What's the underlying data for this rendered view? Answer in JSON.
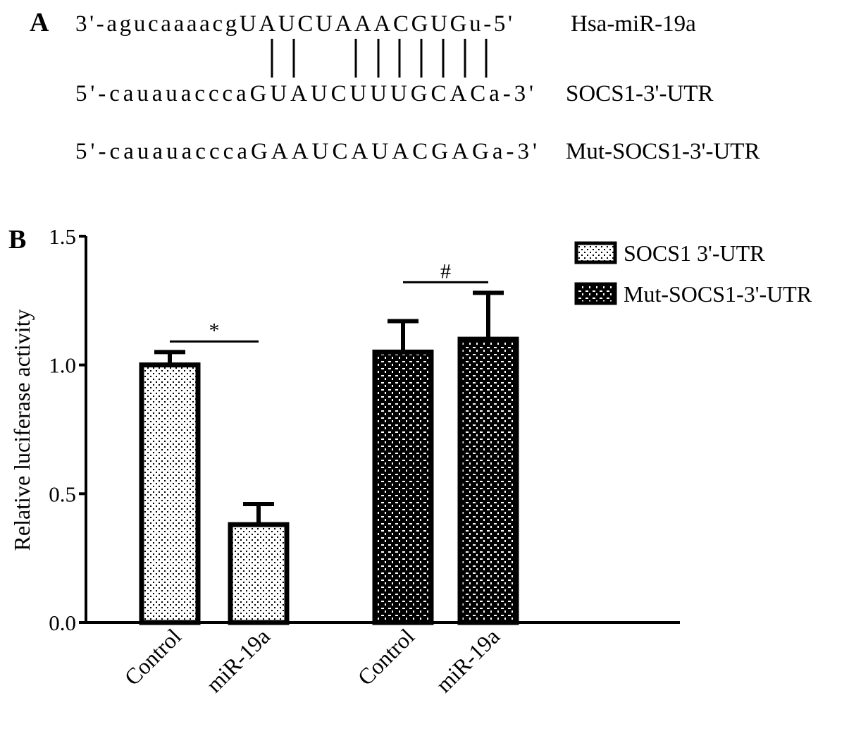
{
  "panel_a": {
    "label": "A",
    "rows": [
      {
        "sequence": "3'-agucaaaacgUAUCUAAACGUGu-5'",
        "name": "Hsa-miR-19a"
      },
      {
        "sequence": "5'-cauauacccaGUAUCUUUGCACa-3'",
        "name": "SOCS1-3'-UTR"
      },
      {
        "sequence": "5'-cauauacccaGAAUCAUACGAGa-3'",
        "name": "Mut-SOCS1-3'-UTR"
      }
    ]
  },
  "chart_data": {
    "type": "bar",
    "panel_label": "B",
    "ylabel": "Relative luciferase activity",
    "categories": [
      "Control",
      "miR-19a",
      "Control",
      "miR-19a"
    ],
    "series": [
      {
        "name": "SOCS1 3'-UTR",
        "values": [
          1.0,
          0.38,
          null,
          null
        ],
        "errors": [
          0.05,
          0.08,
          null,
          null
        ]
      },
      {
        "name": "Mut-SOCS1-3'-UTR",
        "values": [
          null,
          null,
          1.05,
          1.1
        ],
        "errors": [
          null,
          null,
          0.12,
          0.18
        ]
      }
    ],
    "ylim": [
      0,
      1.5
    ],
    "yticks": [
      {
        "value": 0,
        "label": "0.0"
      },
      {
        "value": 0.5,
        "label": "0.5"
      },
      {
        "value": 1,
        "label": "1.0"
      },
      {
        "value": 1.5,
        "label": "1.5"
      }
    ],
    "annotations": [
      "*",
      "#"
    ]
  }
}
